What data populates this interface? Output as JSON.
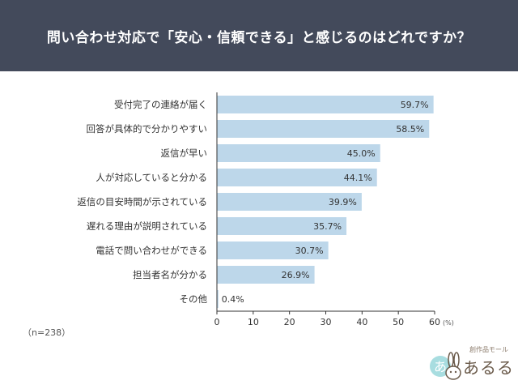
{
  "header": {
    "title": "問い合わせ対応で「安心・信頼できる」と感じるのはどれですか？"
  },
  "sample_size": "（n=238）",
  "logo": {
    "sub": "創作品モール",
    "main": "あるる",
    "badge": "あ"
  },
  "colors": {
    "header_bg": "#434a5b",
    "bar": "#bdd7ea",
    "axis": "#333333"
  },
  "chart_data": {
    "type": "bar",
    "orientation": "horizontal",
    "title": "問い合わせ対応で「安心・信頼できる」と感じるのはどれですか？",
    "categories": [
      "受付完了の連絡が届く",
      "回答が具体的で分かりやすい",
      "返信が早い",
      "人が対応していると分かる",
      "返信の目安時間が示されている",
      "遅れる理由が説明されている",
      "電話で問い合わせができる",
      "担当者名が分かる",
      "その他"
    ],
    "values": [
      59.7,
      58.5,
      45.0,
      44.1,
      39.9,
      35.7,
      30.7,
      26.9,
      0.4
    ],
    "value_labels": [
      "59.7%",
      "58.5%",
      "45.0%",
      "44.1%",
      "39.9%",
      "35.7%",
      "30.7%",
      "26.9%",
      "0.4%"
    ],
    "xlim": [
      0,
      60
    ],
    "xticks": [
      "0",
      "10",
      "20",
      "30",
      "40",
      "50",
      "60"
    ],
    "x_unit": "(%)",
    "legend": "none",
    "grid": false
  }
}
